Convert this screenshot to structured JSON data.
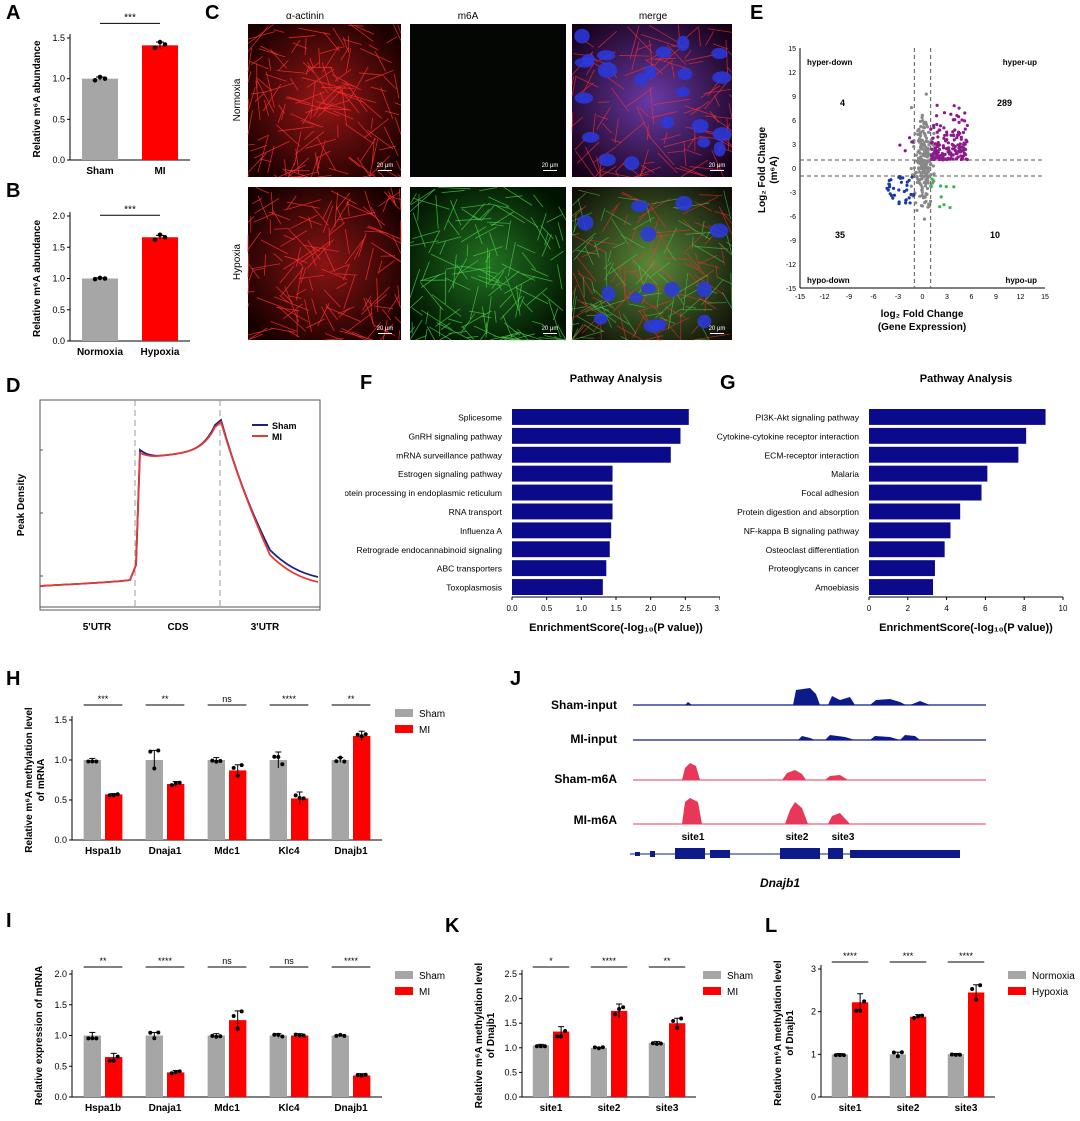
{
  "panels": {
    "A": {
      "label": "A",
      "chart_data": {
        "type": "bar",
        "categories": [
          "Sham",
          "MI"
        ],
        "values": [
          1.0,
          1.41
        ],
        "errors": [
          0.02,
          0.04
        ],
        "points": [
          [
            0.98,
            1.02,
            1.0
          ],
          [
            1.38,
            1.45,
            1.42
          ]
        ],
        "colors": [
          "#a6a6a6",
          "#ff0000"
        ],
        "ylabel": "Relative m⁶A abundance",
        "ylim": [
          0,
          1.5
        ],
        "yticks": [
          "0.0",
          "0.5",
          "1.0",
          "1.5"
        ],
        "sig": "***"
      }
    },
    "B": {
      "label": "B",
      "chart_data": {
        "type": "bar",
        "categories": [
          "Normoxia",
          "Hypoxia"
        ],
        "values": [
          1.0,
          1.66
        ],
        "errors": [
          0.01,
          0.03
        ],
        "points": [
          [
            0.99,
            1.01,
            1.0
          ],
          [
            1.62,
            1.7,
            1.66
          ]
        ],
        "colors": [
          "#a6a6a6",
          "#ff0000"
        ],
        "ylabel": "Relative m⁶A abundance",
        "ylim": [
          0,
          2.0
        ],
        "yticks": [
          "0.0",
          "0.5",
          "1.0",
          "1.5",
          "2.0"
        ],
        "sig": "***"
      }
    },
    "C": {
      "label": "C",
      "columns": [
        "α-actinin",
        "m6A",
        "merge"
      ],
      "rows": [
        "Normoxia",
        "Hypoxia"
      ],
      "scale": "20 μm"
    },
    "D": {
      "label": "D",
      "chart_data": {
        "type": "line",
        "ylabel": "Peak Density",
        "regions": [
          "5'UTR",
          "CDS",
          "3'UTR"
        ],
        "series": [
          {
            "name": "Sham",
            "color": "#1a237e"
          },
          {
            "name": "MI",
            "color": "#e53935"
          }
        ]
      }
    },
    "E": {
      "label": "E",
      "chart_data": {
        "type": "scatter",
        "xlabel_l1": "log₂ Fold Change",
        "xlabel_l2": "(Gene Expression)",
        "ylabel_l1": "Log₂ Fold Change",
        "ylabel_l2": "(m⁶A)",
        "ticks": [
          "-15",
          "-12",
          "-9",
          "-6",
          "-3",
          "0",
          "3",
          "6",
          "9",
          "12",
          "15"
        ],
        "quadrants": {
          "hyper_down": "hyper-down",
          "hyper_up": "hyper-up",
          "hypo_down": "hypo-down",
          "hypo_up": "hypo-up"
        },
        "counts": {
          "hyper_down": "4",
          "hyper_up": "289",
          "hypo_down": "35",
          "hypo_up": "10"
        }
      }
    },
    "F": {
      "label": "F",
      "chart_data": {
        "type": "bar",
        "orientation": "horizontal",
        "title": "Pathway Analysis",
        "categories": [
          "Splicesome",
          "GnRH signaling pathway",
          "mRNA surveillance pathway",
          "Estrogen signaling pathway",
          "Protein processing in endoplasmic reticulum",
          "RNA transport",
          "Influenza A",
          "Retrograde endocannabinoid signaling",
          "ABC transporters",
          "Toxoplasmosis"
        ],
        "values": [
          2.55,
          2.43,
          2.29,
          1.45,
          1.45,
          1.45,
          1.43,
          1.41,
          1.36,
          1.31
        ],
        "xlim": [
          0,
          3.0
        ],
        "xticks": [
          "0.0",
          "0.5",
          "1.0",
          "1.5",
          "2.0",
          "2.5",
          "3.0"
        ],
        "xlabel": "EnrichmentScore(-log₁₀(P value))",
        "color": "#0a0a8a"
      }
    },
    "G": {
      "label": "G",
      "chart_data": {
        "type": "bar",
        "orientation": "horizontal",
        "title": "Pathway Analysis",
        "categories": [
          "PI3K-Akt signaling pathway",
          "Cytokine-cytokine receptor interaction",
          "ECM-receptor interaction",
          "Malaria",
          "Focal adhesion",
          "Protein digestion and absorption",
          "NF-kappa B signaling pathway",
          "Osteoclast differentiation",
          "Proteoglycans in cancer",
          "Amoebiasis"
        ],
        "values": [
          9.1,
          8.1,
          7.7,
          6.1,
          5.8,
          4.7,
          4.2,
          3.9,
          3.4,
          3.3
        ],
        "xlim": [
          0,
          10
        ],
        "xticks": [
          "0",
          "2",
          "4",
          "6",
          "8",
          "10"
        ],
        "xlabel": "EnrichmentScore(-log₁₀(P value))",
        "color": "#0a0a8a"
      }
    },
    "H": {
      "label": "H",
      "chart_data": {
        "type": "bar",
        "categories": [
          "Hspa1b",
          "Dnaja1",
          "Mdc1",
          "Klc4",
          "Dnajb1"
        ],
        "series": [
          {
            "name": "Sham",
            "values": [
              1.0,
              1.0,
              1.0,
              1.0,
              1.0
            ],
            "errors": [
              0.02,
              0.12,
              0.03,
              0.1,
              0.03
            ],
            "color": "#a6a6a6"
          },
          {
            "name": "MI",
            "values": [
              0.57,
              0.7,
              0.87,
              0.52,
              1.3
            ],
            "errors": [
              0.01,
              0.03,
              0.07,
              0.08,
              0.06
            ],
            "color": "#ff0000"
          }
        ],
        "sig": [
          "***",
          "**",
          "ns",
          "****",
          "**"
        ],
        "ylabel_l1": "Relative m⁶A methylation level",
        "ylabel_l2": "of mRNA",
        "ylim": [
          0,
          1.5
        ],
        "yticks": [
          "0.0",
          "0.5",
          "1.0",
          "1.5"
        ]
      }
    },
    "I": {
      "label": "I",
      "chart_data": {
        "type": "bar",
        "categories": [
          "Hspa1b",
          "Dnaja1",
          "Mdc1",
          "Klc4",
          "Dnajb1"
        ],
        "series": [
          {
            "name": "Sham",
            "values": [
              1.0,
              1.0,
              1.0,
              1.0,
              1.0
            ],
            "errors": [
              0.05,
              0.05,
              0.03,
              0.03,
              0.01
            ],
            "color": "#a6a6a6"
          },
          {
            "name": "MI",
            "values": [
              0.65,
              0.4,
              1.25,
              1.0,
              0.35
            ],
            "errors": [
              0.06,
              0.03,
              0.15,
              0.03,
              0.03
            ],
            "color": "#ff0000"
          }
        ],
        "sig": [
          "**",
          "****",
          "ns",
          "ns",
          "****"
        ],
        "ylabel": "Relative expression of mRNA",
        "ylim": [
          0,
          2.0
        ],
        "yticks": [
          "0.0",
          "0.5",
          "1.0",
          "1.5",
          "2.0"
        ]
      }
    },
    "J": {
      "label": "J",
      "gene": "Dnajb1",
      "tracks": [
        "Sham-input",
        "MI-input",
        "Sham-m6A",
        "MI-m6A"
      ],
      "sites": [
        "site1",
        "site2",
        "site3"
      ]
    },
    "K": {
      "label": "K",
      "chart_data": {
        "type": "bar",
        "categories": [
          "site1",
          "site2",
          "site3"
        ],
        "series": [
          {
            "name": "Sham",
            "values": [
              1.05,
              1.0,
              1.1
            ],
            "errors": [
              0.02,
              0.01,
              0.03
            ],
            "color": "#a6a6a6"
          },
          {
            "name": "MI",
            "values": [
              1.33,
              1.75,
              1.5
            ],
            "errors": [
              0.1,
              0.14,
              0.1
            ],
            "color": "#ff0000"
          }
        ],
        "sig": [
          "*",
          "****",
          "**"
        ],
        "ylabel_l1": "Relative m⁶A methylation level",
        "ylabel_l2": "of Dnajb1",
        "ylim": [
          0,
          2.5
        ],
        "yticks": [
          "0.0",
          "0.5",
          "1.0",
          "1.5",
          "2.0",
          "2.5"
        ]
      }
    },
    "L": {
      "label": "L",
      "chart_data": {
        "type": "bar",
        "categories": [
          "site1",
          "site2",
          "site3"
        ],
        "series": [
          {
            "name": "Normoxia",
            "values": [
              1.0,
              1.0,
              1.0
            ],
            "errors": [
              0.02,
              0.05,
              0.02
            ],
            "color": "#a6a6a6"
          },
          {
            "name": "Hypoxia",
            "values": [
              2.22,
              1.88,
              2.45
            ],
            "errors": [
              0.2,
              0.05,
              0.18
            ],
            "color": "#ff0000"
          }
        ],
        "sig": [
          "****",
          "***",
          "****"
        ],
        "ylabel_l1": "Relative m⁶A methylation level",
        "ylabel_l2": "of Dnajb1",
        "ylim": [
          0,
          3
        ],
        "yticks": [
          "0",
          "1",
          "2",
          "3"
        ]
      }
    }
  }
}
